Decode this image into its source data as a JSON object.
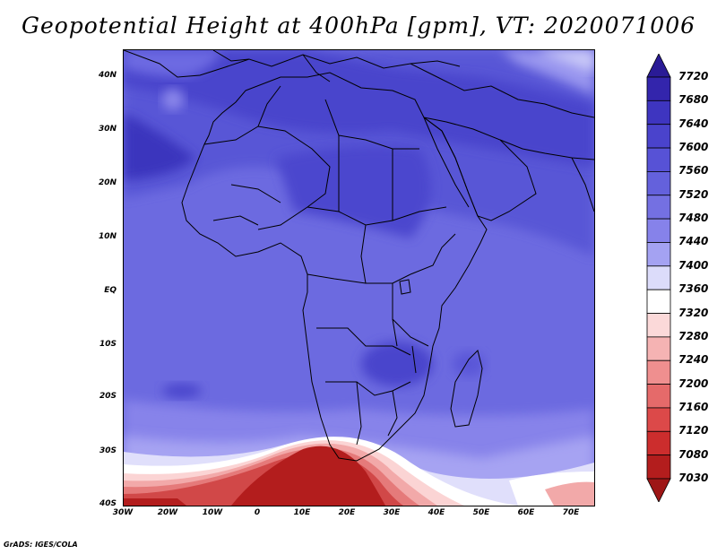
{
  "title": "Geopotential Height at 400hPa [gpm], VT: 2020071006",
  "credit": "GrADS: IGES/COLA",
  "lat_labels": [
    "40N",
    "30N",
    "20N",
    "10N",
    "EQ",
    "10S",
    "20S",
    "30S",
    "40S"
  ],
  "lon_labels": [
    "30W",
    "20W",
    "10W",
    "0",
    "10E",
    "20E",
    "30E",
    "40E",
    "50E",
    "60E",
    "70E"
  ],
  "colorbar": {
    "levels": [
      "7720",
      "7680",
      "7640",
      "7600",
      "7560",
      "7520",
      "7480",
      "7440",
      "7400",
      "7360",
      "7320",
      "7280",
      "7240",
      "7200",
      "7160",
      "7120",
      "7080",
      "7030"
    ],
    "colors": [
      "#2a1b96",
      "#3325ac",
      "#3e35c0",
      "#4a43cc",
      "#5752d6",
      "#6461dc",
      "#7470e2",
      "#8682ea",
      "#a4a2f2",
      "#dcdcfa",
      "#ffffff",
      "#fbd9d9",
      "#f5b3b3",
      "#ef8f8f",
      "#e56a6a",
      "#dc4949",
      "#cc2d2d",
      "#b31d1d",
      "#9e1616"
    ]
  }
}
